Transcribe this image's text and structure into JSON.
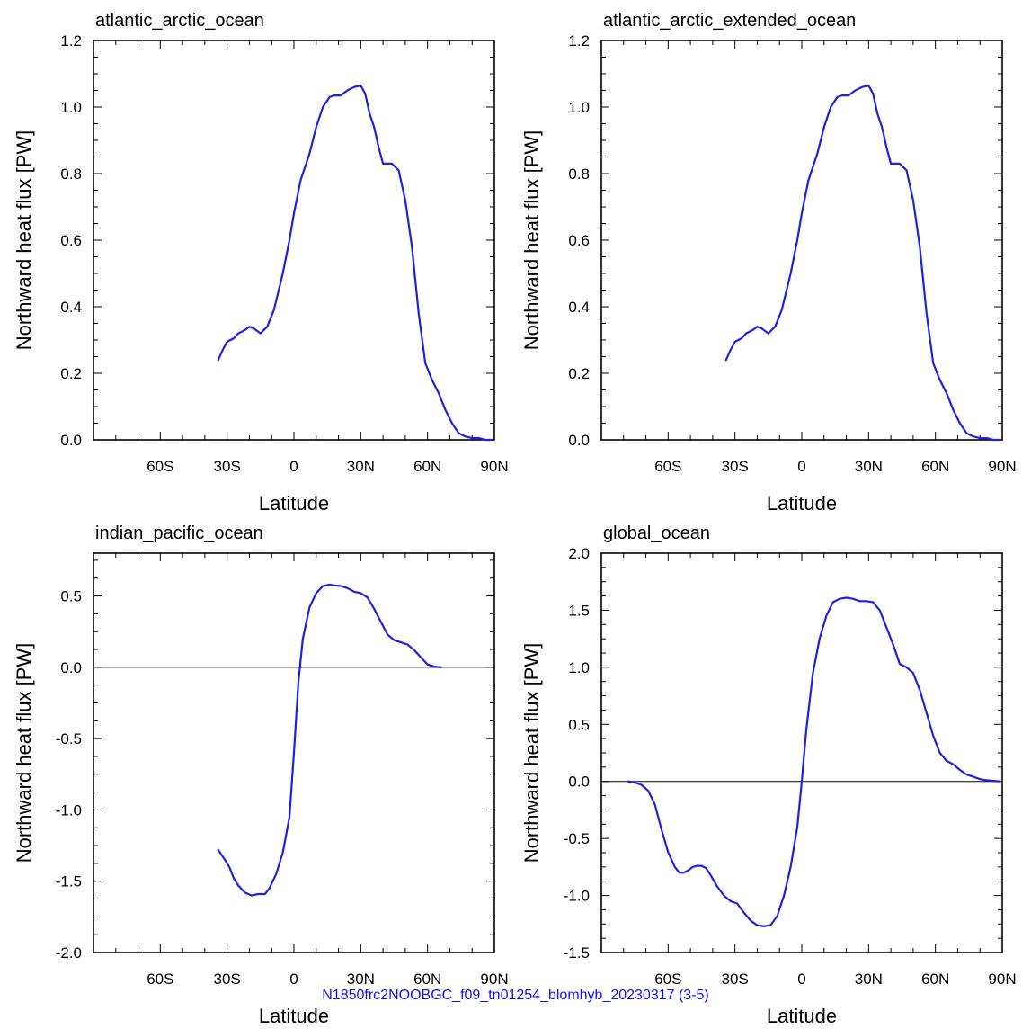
{
  "footer": "N1850frc2NOOBGC_f09_tn01254_blomhyb_20230317 (3-5)",
  "line_color": "#1f1fe6",
  "chart_data": [
    {
      "type": "line",
      "title": "atlantic_arctic_ocean",
      "xlabel": "Latitude",
      "ylabel": "Northward heat flux [PW]",
      "xlim": [
        -90,
        90
      ],
      "ylim": [
        0,
        1.2
      ],
      "xticks": [
        -60,
        -30,
        0,
        30,
        60,
        90
      ],
      "xtick_labels": [
        "60S",
        "30S",
        "0",
        "30N",
        "60N",
        "90N"
      ],
      "yticks": [
        0,
        0.2,
        0.4,
        0.6,
        0.8,
        1.0,
        1.2
      ],
      "ytick_labels": [
        "0.0",
        "0.2",
        "0.4",
        "0.6",
        "0.8",
        "1.0",
        "1.2"
      ],
      "zero_line": false,
      "series": [
        {
          "x": [
            -34,
            -32,
            -30,
            -27,
            -25,
            -22,
            -20,
            -18,
            -15,
            -12,
            -9,
            -5,
            -2,
            0,
            3,
            7,
            10,
            13,
            16,
            18,
            21,
            24,
            27,
            30,
            32,
            34,
            36,
            38,
            40,
            42,
            44,
            47,
            50,
            53,
            56,
            59,
            62,
            65,
            68,
            71,
            74,
            77,
            80,
            83,
            86,
            89
          ],
          "y": [
            0.24,
            0.27,
            0.295,
            0.305,
            0.32,
            0.33,
            0.34,
            0.335,
            0.32,
            0.34,
            0.39,
            0.5,
            0.6,
            0.68,
            0.78,
            0.86,
            0.94,
            1.0,
            1.03,
            1.035,
            1.035,
            1.05,
            1.06,
            1.065,
            1.04,
            0.98,
            0.94,
            0.88,
            0.83,
            0.83,
            0.83,
            0.81,
            0.72,
            0.58,
            0.38,
            0.23,
            0.18,
            0.14,
            0.09,
            0.05,
            0.02,
            0.01,
            0.005,
            0.005,
            0.0,
            0.0
          ]
        }
      ]
    },
    {
      "type": "line",
      "title": "atlantic_arctic_extended_ocean",
      "xlabel": "Latitude",
      "ylabel": "Northward heat flux [PW]",
      "xlim": [
        -90,
        90
      ],
      "ylim": [
        0,
        1.2
      ],
      "xticks": [
        -60,
        -30,
        0,
        30,
        60,
        90
      ],
      "xtick_labels": [
        "60S",
        "30S",
        "0",
        "30N",
        "60N",
        "90N"
      ],
      "yticks": [
        0,
        0.2,
        0.4,
        0.6,
        0.8,
        1.0,
        1.2
      ],
      "ytick_labels": [
        "0.0",
        "0.2",
        "0.4",
        "0.6",
        "0.8",
        "1.0",
        "1.2"
      ],
      "zero_line": false,
      "series": [
        {
          "x": [
            -34,
            -32,
            -30,
            -27,
            -25,
            -22,
            -20,
            -18,
            -15,
            -12,
            -9,
            -5,
            -2,
            0,
            3,
            7,
            10,
            13,
            16,
            18,
            21,
            24,
            27,
            30,
            32,
            34,
            36,
            38,
            40,
            42,
            44,
            47,
            50,
            53,
            56,
            59,
            62,
            65,
            68,
            71,
            74,
            77,
            80,
            83,
            86,
            89
          ],
          "y": [
            0.24,
            0.27,
            0.295,
            0.305,
            0.32,
            0.33,
            0.34,
            0.335,
            0.32,
            0.34,
            0.39,
            0.5,
            0.6,
            0.68,
            0.78,
            0.86,
            0.94,
            1.0,
            1.03,
            1.035,
            1.035,
            1.05,
            1.06,
            1.065,
            1.04,
            0.98,
            0.94,
            0.88,
            0.83,
            0.83,
            0.83,
            0.81,
            0.72,
            0.58,
            0.38,
            0.23,
            0.18,
            0.14,
            0.09,
            0.05,
            0.02,
            0.01,
            0.005,
            0.005,
            0.0,
            0.0
          ]
        }
      ]
    },
    {
      "type": "line",
      "title": "indian_pacific_ocean",
      "xlabel": "Latitude",
      "ylabel": "Northward heat flux [PW]",
      "xlim": [
        -90,
        90
      ],
      "ylim": [
        -2.0,
        0.8
      ],
      "xticks": [
        -60,
        -30,
        0,
        30,
        60,
        90
      ],
      "xtick_labels": [
        "60S",
        "30S",
        "0",
        "30N",
        "60N",
        "90N"
      ],
      "yticks": [
        -2.0,
        -1.5,
        -1.0,
        -0.5,
        0.0,
        0.5
      ],
      "ytick_labels": [
        "-2.0",
        "-1.5",
        "-1.0",
        "-0.5",
        "0.0",
        "0.5"
      ],
      "zero_line": true,
      "series": [
        {
          "x": [
            -34,
            -31,
            -29,
            -27,
            -25,
            -22,
            -19,
            -16,
            -13,
            -11,
            -8,
            -5,
            -2,
            0,
            2,
            4,
            7,
            10,
            13,
            16,
            18,
            21,
            24,
            27,
            30,
            33,
            36,
            39,
            42,
            45,
            48,
            51,
            54,
            57,
            60,
            63,
            66
          ],
          "y": [
            -1.28,
            -1.35,
            -1.4,
            -1.48,
            -1.53,
            -1.58,
            -1.6,
            -1.59,
            -1.59,
            -1.55,
            -1.45,
            -1.3,
            -1.05,
            -0.6,
            -0.1,
            0.2,
            0.42,
            0.52,
            0.57,
            0.58,
            0.575,
            0.57,
            0.555,
            0.53,
            0.52,
            0.49,
            0.41,
            0.32,
            0.23,
            0.19,
            0.175,
            0.16,
            0.12,
            0.07,
            0.02,
            0.005,
            0.0
          ]
        }
      ]
    },
    {
      "type": "line",
      "title": "global_ocean",
      "xlabel": "Latitude",
      "ylabel": "Northward heat flux [PW]",
      "xlim": [
        -90,
        90
      ],
      "ylim": [
        -1.5,
        2.0
      ],
      "xticks": [
        -60,
        -30,
        0,
        30,
        60,
        90
      ],
      "xtick_labels": [
        "60S",
        "30S",
        "0",
        "30N",
        "60N",
        "90N"
      ],
      "yticks": [
        -1.5,
        -1.0,
        -0.5,
        0.0,
        0.5,
        1.0,
        1.5,
        2.0
      ],
      "ytick_labels": [
        "-1.5",
        "-1.0",
        "-0.5",
        "0.0",
        "0.5",
        "1.0",
        "1.5",
        "2.0"
      ],
      "zero_line": true,
      "series": [
        {
          "x": [
            -78,
            -75,
            -72,
            -69,
            -66,
            -63,
            -60,
            -57,
            -55,
            -53,
            -51,
            -49,
            -47,
            -45,
            -43,
            -41,
            -38,
            -35,
            -32,
            -29,
            -26,
            -23,
            -20,
            -17,
            -14,
            -11,
            -8,
            -5,
            -2,
            0,
            2,
            5,
            8,
            11,
            14,
            17,
            20,
            23,
            26,
            29,
            32,
            35,
            38,
            41,
            44,
            47,
            50,
            53,
            56,
            59,
            62,
            65,
            68,
            71,
            74,
            77,
            80,
            83,
            86,
            89
          ],
          "y": [
            0.0,
            -0.01,
            -0.03,
            -0.08,
            -0.2,
            -0.42,
            -0.62,
            -0.75,
            -0.8,
            -0.8,
            -0.78,
            -0.75,
            -0.74,
            -0.74,
            -0.76,
            -0.82,
            -0.92,
            -1.0,
            -1.05,
            -1.07,
            -1.15,
            -1.22,
            -1.26,
            -1.27,
            -1.26,
            -1.18,
            -1.0,
            -0.75,
            -0.4,
            0.0,
            0.45,
            0.95,
            1.25,
            1.45,
            1.57,
            1.6,
            1.61,
            1.6,
            1.58,
            1.58,
            1.57,
            1.5,
            1.35,
            1.2,
            1.03,
            1.0,
            0.95,
            0.8,
            0.6,
            0.4,
            0.25,
            0.18,
            0.15,
            0.1,
            0.06,
            0.04,
            0.02,
            0.01,
            0.005,
            0.0
          ]
        }
      ]
    }
  ]
}
